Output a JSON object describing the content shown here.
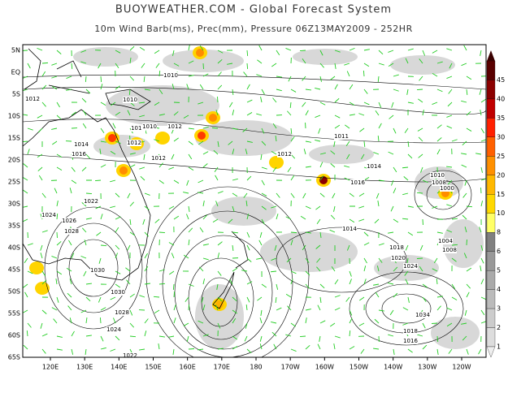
{
  "header": {
    "title": "BUOYWEATHER.COM - Global Forecast System",
    "subtitle": "10m Wind Barb(ms), Prec(mm), Pressure 06Z13MAY2009 - 252HR"
  },
  "map": {
    "lat_labels": [
      "5N",
      "EQ",
      "5S",
      "10S",
      "15S",
      "20S",
      "25S",
      "30S",
      "35S",
      "40S",
      "45S",
      "50S",
      "55S",
      "60S",
      "65S"
    ],
    "lon_labels": [
      "120E",
      "130E",
      "140E",
      "150E",
      "160E",
      "170E",
      "180",
      "170W",
      "160W",
      "150W",
      "140W",
      "130W",
      "120W"
    ],
    "isobar_labels": [
      "1010",
      "1012",
      "1010",
      "1012",
      "1010",
      "1012",
      "1014",
      "1016",
      "1012",
      "1012",
      "1011",
      "1014",
      "1016",
      "1012",
      "1010",
      "1008",
      "1000",
      "1004",
      "1008",
      "1014",
      "1018",
      "1020",
      "1024",
      "1022",
      "1024",
      "1026",
      "1028",
      "1030",
      "1030",
      "1028",
      "1024",
      "1022",
      "1034",
      "1018",
      "1016"
    ]
  },
  "colorbar": {
    "labels": [
      "45",
      "40",
      "35",
      "30",
      "25",
      "20",
      "15",
      "10",
      "8",
      "6",
      "5",
      "4",
      "3",
      "2",
      "1"
    ]
  }
}
